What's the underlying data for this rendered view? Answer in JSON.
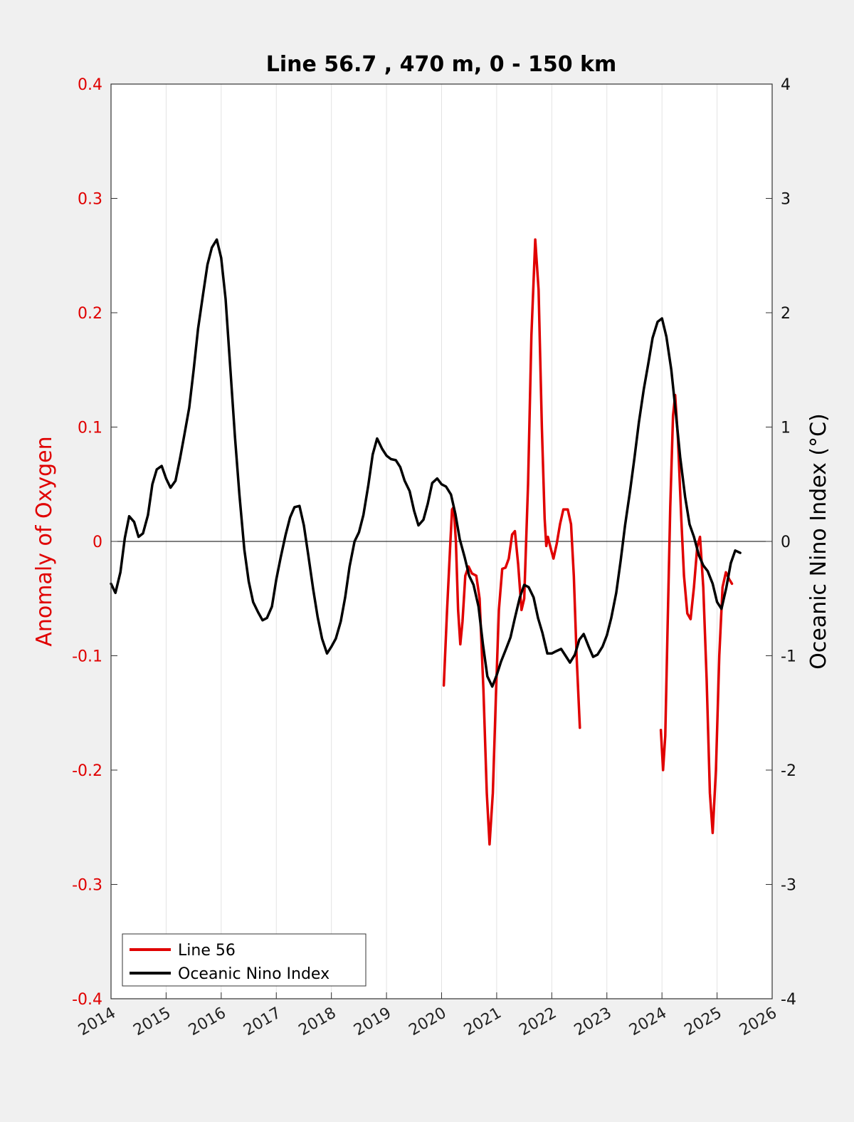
{
  "chart_data": {
    "type": "line",
    "title": "Line 56.7 , 470 m, 0 - 150 km",
    "xlabel": "",
    "ylabel_left": "Anomaly of Oxygen",
    "ylabel_right": "Oceanic Nino Index (°C)",
    "xlim": [
      2014,
      2026
    ],
    "ylim_left": [
      -0.4,
      0.4
    ],
    "ylim_right": [
      -4,
      4
    ],
    "x_ticks": [
      2014,
      2015,
      2016,
      2017,
      2018,
      2019,
      2020,
      2021,
      2022,
      2023,
      2024,
      2025,
      2026
    ],
    "x_tick_labels": [
      "2014",
      "2015",
      "2016",
      "2017",
      "2018",
      "2019",
      "2020",
      "2021",
      "2022",
      "2023",
      "2024",
      "2025",
      "2026"
    ],
    "y_left_ticks": [
      0.4,
      0.3,
      0.2,
      0.1,
      0,
      -0.1,
      -0.2,
      -0.3,
      -0.4
    ],
    "y_left_tick_labels": [
      "0.4",
      "0.3",
      "0.2",
      "0.1",
      "0",
      "-0.1",
      "-0.2",
      "-0.3",
      "-0.4"
    ],
    "y_right_ticks": [
      4,
      3,
      2,
      1,
      0,
      -1,
      -2,
      -3,
      -4
    ],
    "y_right_tick_labels": [
      "4",
      "3",
      "2",
      "1",
      "0",
      "-1",
      "-2",
      "-3",
      "-4"
    ],
    "grid": "vertical",
    "legend_position": "bottom-left",
    "colors": {
      "line56": "#e00000",
      "oni": "#000000",
      "background": "#f0f0f0",
      "plot_bg": "#ffffff"
    },
    "series": [
      {
        "name": "Line 56",
        "axis": "left",
        "segments": [
          [
            [
              2020.04,
              -0.126
            ],
            [
              2020.1,
              -0.06
            ],
            [
              2020.16,
              0.0
            ],
            [
              2020.19,
              0.028
            ],
            [
              2020.22,
              0.03
            ],
            [
              2020.26,
              0.0
            ],
            [
              2020.3,
              -0.06
            ],
            [
              2020.34,
              -0.09
            ],
            [
              2020.38,
              -0.07
            ],
            [
              2020.43,
              -0.03
            ],
            [
              2020.49,
              -0.022
            ],
            [
              2020.55,
              -0.028
            ],
            [
              2020.63,
              -0.03
            ],
            [
              2020.69,
              -0.05
            ],
            [
              2020.76,
              -0.13
            ],
            [
              2020.82,
              -0.22
            ],
            [
              2020.87,
              -0.265
            ],
            [
              2020.93,
              -0.22
            ],
            [
              2020.99,
              -0.13
            ],
            [
              2021.04,
              -0.06
            ],
            [
              2021.1,
              -0.024
            ],
            [
              2021.16,
              -0.023
            ],
            [
              2021.22,
              -0.015
            ],
            [
              2021.28,
              0.006
            ],
            [
              2021.33,
              0.009
            ],
            [
              2021.39,
              -0.02
            ],
            [
              2021.45,
              -0.06
            ],
            [
              2021.5,
              -0.05
            ],
            [
              2021.57,
              0.05
            ],
            [
              2021.63,
              0.18
            ],
            [
              2021.7,
              0.264
            ],
            [
              2021.76,
              0.22
            ],
            [
              2021.82,
              0.1
            ],
            [
              2021.87,
              0.02
            ],
            [
              2021.9,
              -0.004
            ],
            [
              2021.93,
              0.004
            ],
            [
              2021.97,
              -0.004
            ],
            [
              2022.03,
              -0.015
            ],
            [
              2022.09,
              -0.002
            ],
            [
              2022.15,
              0.015
            ],
            [
              2022.21,
              0.028
            ],
            [
              2022.29,
              0.028
            ],
            [
              2022.35,
              0.015
            ],
            [
              2022.4,
              -0.03
            ],
            [
              2022.45,
              -0.1
            ],
            [
              2022.51,
              -0.163
            ]
          ],
          [
            [
              2023.98,
              -0.165
            ],
            [
              2024.02,
              -0.2
            ],
            [
              2024.06,
              -0.17
            ],
            [
              2024.1,
              -0.08
            ],
            [
              2024.15,
              0.03
            ],
            [
              2024.2,
              0.11
            ],
            [
              2024.24,
              0.128
            ],
            [
              2024.29,
              0.09
            ],
            [
              2024.35,
              0.02
            ],
            [
              2024.4,
              -0.03
            ],
            [
              2024.46,
              -0.063
            ],
            [
              2024.52,
              -0.068
            ],
            [
              2024.58,
              -0.04
            ],
            [
              2024.64,
              -0.005
            ],
            [
              2024.69,
              0.004
            ],
            [
              2024.75,
              -0.04
            ],
            [
              2024.81,
              -0.12
            ],
            [
              2024.87,
              -0.22
            ],
            [
              2024.92,
              -0.255
            ],
            [
              2024.98,
              -0.2
            ],
            [
              2025.04,
              -0.1
            ],
            [
              2025.1,
              -0.04
            ],
            [
              2025.16,
              -0.027
            ],
            [
              2025.22,
              -0.033
            ],
            [
              2025.27,
              -0.037
            ]
          ]
        ]
      },
      {
        "name": "Oceanic Nino Index",
        "axis": "right",
        "points": [
          [
            2014.0,
            -0.37
          ],
          [
            2014.08,
            -0.45
          ],
          [
            2014.17,
            -0.27
          ],
          [
            2014.25,
            0.03
          ],
          [
            2014.33,
            0.22
          ],
          [
            2014.42,
            0.17
          ],
          [
            2014.5,
            0.04
          ],
          [
            2014.58,
            0.07
          ],
          [
            2014.67,
            0.23
          ],
          [
            2014.75,
            0.5
          ],
          [
            2014.83,
            0.63
          ],
          [
            2014.92,
            0.66
          ],
          [
            2015.0,
            0.55
          ],
          [
            2015.08,
            0.47
          ],
          [
            2015.17,
            0.53
          ],
          [
            2015.25,
            0.72
          ],
          [
            2015.33,
            0.93
          ],
          [
            2015.42,
            1.17
          ],
          [
            2015.5,
            1.5
          ],
          [
            2015.58,
            1.86
          ],
          [
            2015.67,
            2.16
          ],
          [
            2015.75,
            2.42
          ],
          [
            2015.83,
            2.57
          ],
          [
            2015.92,
            2.64
          ],
          [
            2016.0,
            2.48
          ],
          [
            2016.08,
            2.12
          ],
          [
            2016.17,
            1.48
          ],
          [
            2016.25,
            0.91
          ],
          [
            2016.33,
            0.41
          ],
          [
            2016.42,
            -0.07
          ],
          [
            2016.5,
            -0.35
          ],
          [
            2016.58,
            -0.53
          ],
          [
            2016.67,
            -0.62
          ],
          [
            2016.75,
            -0.69
          ],
          [
            2016.83,
            -0.67
          ],
          [
            2016.92,
            -0.57
          ],
          [
            2017.0,
            -0.33
          ],
          [
            2017.08,
            -0.14
          ],
          [
            2017.17,
            0.06
          ],
          [
            2017.25,
            0.21
          ],
          [
            2017.33,
            0.3
          ],
          [
            2017.42,
            0.31
          ],
          [
            2017.5,
            0.14
          ],
          [
            2017.58,
            -0.12
          ],
          [
            2017.67,
            -0.42
          ],
          [
            2017.75,
            -0.66
          ],
          [
            2017.83,
            -0.85
          ],
          [
            2017.92,
            -0.98
          ],
          [
            2018.0,
            -0.92
          ],
          [
            2018.08,
            -0.85
          ],
          [
            2018.17,
            -0.7
          ],
          [
            2018.25,
            -0.49
          ],
          [
            2018.33,
            -0.22
          ],
          [
            2018.42,
            0.0
          ],
          [
            2018.5,
            0.08
          ],
          [
            2018.58,
            0.23
          ],
          [
            2018.67,
            0.49
          ],
          [
            2018.75,
            0.76
          ],
          [
            2018.83,
            0.9
          ],
          [
            2018.92,
            0.81
          ],
          [
            2019.0,
            0.75
          ],
          [
            2019.08,
            0.72
          ],
          [
            2019.17,
            0.71
          ],
          [
            2019.25,
            0.65
          ],
          [
            2019.33,
            0.53
          ],
          [
            2019.42,
            0.44
          ],
          [
            2019.5,
            0.27
          ],
          [
            2019.58,
            0.14
          ],
          [
            2019.67,
            0.19
          ],
          [
            2019.75,
            0.33
          ],
          [
            2019.83,
            0.51
          ],
          [
            2019.92,
            0.55
          ],
          [
            2020.0,
            0.5
          ],
          [
            2020.08,
            0.48
          ],
          [
            2020.17,
            0.41
          ],
          [
            2020.25,
            0.24
          ],
          [
            2020.33,
            0.02
          ],
          [
            2020.42,
            -0.14
          ],
          [
            2020.5,
            -0.3
          ],
          [
            2020.58,
            -0.38
          ],
          [
            2020.67,
            -0.57
          ],
          [
            2020.75,
            -0.9
          ],
          [
            2020.83,
            -1.18
          ],
          [
            2020.92,
            -1.27
          ],
          [
            2021.0,
            -1.17
          ],
          [
            2021.08,
            -1.05
          ],
          [
            2021.17,
            -0.94
          ],
          [
            2021.25,
            -0.84
          ],
          [
            2021.33,
            -0.67
          ],
          [
            2021.42,
            -0.49
          ],
          [
            2021.5,
            -0.38
          ],
          [
            2021.58,
            -0.4
          ],
          [
            2021.67,
            -0.49
          ],
          [
            2021.75,
            -0.67
          ],
          [
            2021.83,
            -0.8
          ],
          [
            2021.92,
            -0.98
          ],
          [
            2022.0,
            -0.98
          ],
          [
            2022.08,
            -0.96
          ],
          [
            2022.17,
            -0.94
          ],
          [
            2022.25,
            -1.0
          ],
          [
            2022.33,
            -1.06
          ],
          [
            2022.42,
            -0.99
          ],
          [
            2022.5,
            -0.86
          ],
          [
            2022.58,
            -0.81
          ],
          [
            2022.67,
            -0.92
          ],
          [
            2022.75,
            -1.01
          ],
          [
            2022.83,
            -0.99
          ],
          [
            2022.92,
            -0.92
          ],
          [
            2023.0,
            -0.82
          ],
          [
            2023.08,
            -0.67
          ],
          [
            2023.17,
            -0.45
          ],
          [
            2023.25,
            -0.17
          ],
          [
            2023.33,
            0.14
          ],
          [
            2023.42,
            0.44
          ],
          [
            2023.5,
            0.73
          ],
          [
            2023.58,
            1.04
          ],
          [
            2023.67,
            1.33
          ],
          [
            2023.75,
            1.55
          ],
          [
            2023.83,
            1.78
          ],
          [
            2023.92,
            1.92
          ],
          [
            2024.0,
            1.95
          ],
          [
            2024.08,
            1.79
          ],
          [
            2024.17,
            1.5
          ],
          [
            2024.25,
            1.13
          ],
          [
            2024.33,
            0.74
          ],
          [
            2024.42,
            0.39
          ],
          [
            2024.5,
            0.15
          ],
          [
            2024.58,
            0.04
          ],
          [
            2024.67,
            -0.12
          ],
          [
            2024.75,
            -0.21
          ],
          [
            2024.83,
            -0.26
          ],
          [
            2024.92,
            -0.37
          ],
          [
            2025.0,
            -0.53
          ],
          [
            2025.08,
            -0.59
          ],
          [
            2025.17,
            -0.4
          ],
          [
            2025.25,
            -0.19
          ],
          [
            2025.33,
            -0.08
          ],
          [
            2025.42,
            -0.1
          ]
        ]
      }
    ]
  }
}
